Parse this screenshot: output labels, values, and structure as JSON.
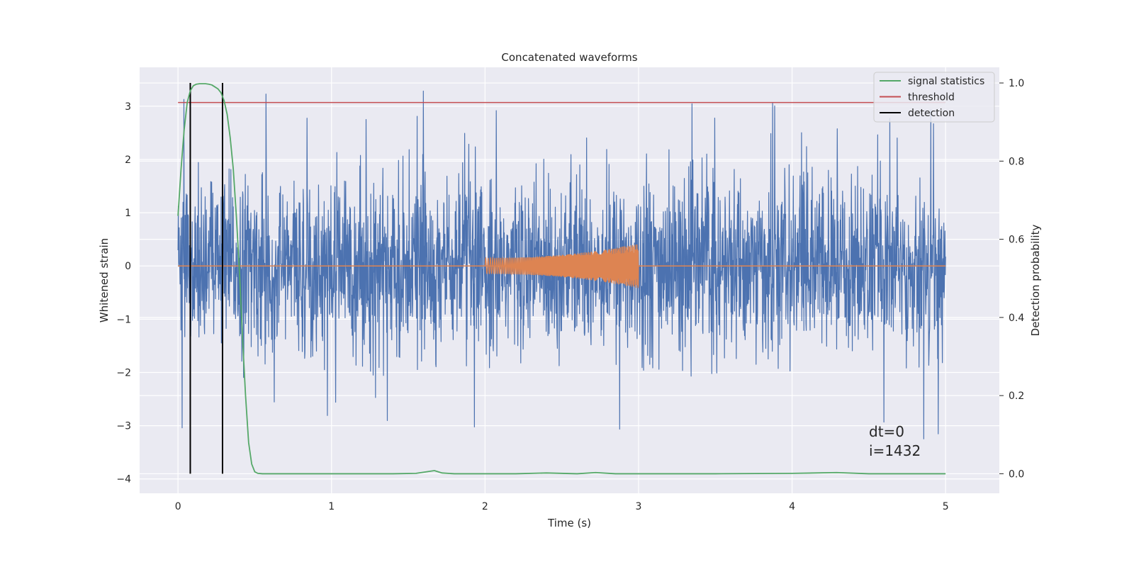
{
  "chart_data": {
    "type": "line",
    "title": "Concatenated waveforms",
    "xlabel": "Time (s)",
    "ylabel": "Whitened strain",
    "ylabel_right": "Detection probability",
    "xlim": [
      -0.25,
      5.35
    ],
    "ylim": [
      -4.27,
      3.73
    ],
    "ylim_right": [
      -0.05,
      1.04
    ],
    "xticks": [
      0,
      1,
      2,
      3,
      4,
      5
    ],
    "yticks": [
      -4,
      -3,
      -2,
      -1,
      0,
      1,
      2,
      3
    ],
    "yticks_right": [
      0.0,
      0.2,
      0.4,
      0.6,
      0.8,
      1.0
    ],
    "xtick_labels": [
      "0",
      "1",
      "2",
      "3",
      "4",
      "5"
    ],
    "ytick_labels": [
      "−4",
      "−3",
      "−2",
      "−1",
      "0",
      "1",
      "2",
      "3"
    ],
    "ytick_right_labels": [
      "0.0",
      "0.2",
      "0.4",
      "0.6",
      "0.8",
      "1.0"
    ],
    "grid": true,
    "legend_position": "top-right",
    "colors": {
      "strain": "#4c72b0",
      "injected": "#dd8452",
      "signal_statistics": "#55a868",
      "threshold": "#c44e52",
      "detection": "#000000",
      "background": "#eaeaf2"
    },
    "legend": [
      {
        "label": "signal statistics",
        "color": "#55a868"
      },
      {
        "label": "threshold",
        "color": "#c44e52"
      },
      {
        "label": "detection",
        "color": "#000000"
      }
    ],
    "threshold": 0.95,
    "detection_times": [
      0.08,
      0.29
    ],
    "signal_statistics": {
      "x": [
        0,
        0.02,
        0.04,
        0.06,
        0.08,
        0.1,
        0.12,
        0.14,
        0.16,
        0.18,
        0.2,
        0.22,
        0.24,
        0.26,
        0.28,
        0.3,
        0.32,
        0.34,
        0.36,
        0.38,
        0.4,
        0.42,
        0.44,
        0.46,
        0.48,
        0.5,
        0.52,
        0.55,
        0.6,
        0.8,
        1.0,
        1.2,
        1.4,
        1.55,
        1.62,
        1.67,
        1.72,
        1.8,
        2.0,
        2.2,
        2.4,
        2.6,
        2.72,
        2.85,
        3.0,
        3.5,
        4.0,
        4.29,
        4.5,
        5.0
      ],
      "y": [
        0.66,
        0.78,
        0.88,
        0.95,
        0.98,
        0.993,
        0.997,
        0.998,
        0.998,
        0.998,
        0.997,
        0.995,
        0.99,
        0.985,
        0.975,
        0.955,
        0.92,
        0.86,
        0.78,
        0.66,
        0.52,
        0.35,
        0.2,
        0.08,
        0.025,
        0.005,
        0.001,
        0.0,
        0.0,
        0.0,
        0.0,
        0.0,
        0.0,
        0.001,
        0.005,
        0.008,
        0.002,
        0.0,
        0.0,
        0.0,
        0.002,
        0.0,
        0.003,
        0.0,
        0.0,
        0.0,
        0.001,
        0.003,
        0.0,
        0.0
      ]
    },
    "injected_signal": {
      "t_start": 2.0,
      "t_end": 3.0,
      "amp_start": 0.15,
      "amp_end": 0.42,
      "baseline": 0.0
    },
    "strain_noise": {
      "t_start": 0.0,
      "t_end": 5.0,
      "typical_max": 2.3,
      "typical_min": -2.1,
      "peak_max": 3.4,
      "peak_min": -3.9
    }
  },
  "annotation": {
    "line1": "dt=0",
    "line2": "i=1432"
  }
}
